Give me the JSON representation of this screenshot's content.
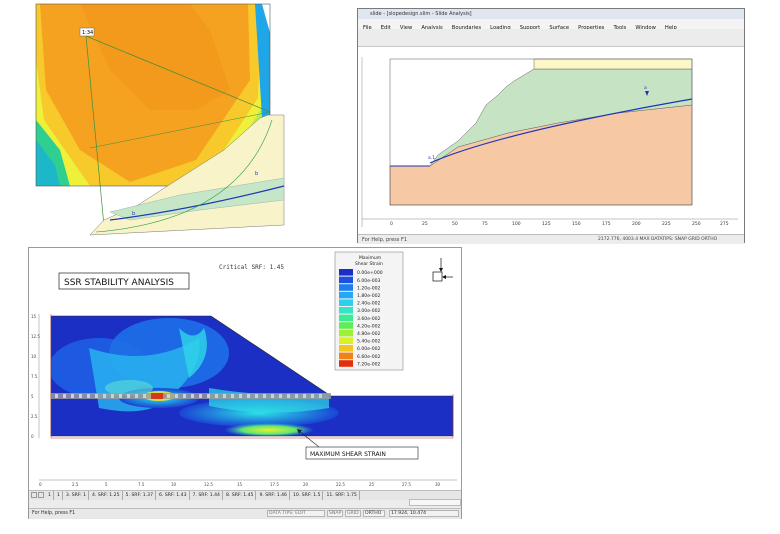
{
  "panel_top_left": {
    "label_box": "1:34",
    "label_b1": "b",
    "label_b2": "b"
  },
  "panel_top_right": {
    "window_title": "slide - [slopedesign.slim - Slide Analysis]",
    "menu": [
      "File",
      "Edit",
      "View",
      "Analysis",
      "Boundaries",
      "Loading",
      "Support",
      "Surface",
      "Properties",
      "Tools",
      "Window",
      "Help"
    ],
    "point_label_a": "a",
    "point_label_b": "a.1",
    "axis_ticks": [
      "0",
      "25",
      "50",
      "75",
      "100",
      "125",
      "150",
      "175",
      "200",
      "225",
      "250",
      "275"
    ],
    "status_left": "For Help, press F1",
    "status_right": "2172.776, 4003.4 MAX DATATIPS: SNAP GRID ORTHO"
  },
  "panel_bottom": {
    "critical_srf": "Critical SRF: 1.45",
    "analysis_title": "SSR STABILITY ANALYSIS",
    "legend_title_1": "Maximum",
    "legend_title_2": "Shear Strain",
    "legend_items": [
      {
        "label": "0.00e+000",
        "color": "#1b2fc8"
      },
      {
        "label": "6.00e-003",
        "color": "#1f4fe0"
      },
      {
        "label": "1.20e-002",
        "color": "#1e7ef0"
      },
      {
        "label": "1.80e-002",
        "color": "#23a9f2"
      },
      {
        "label": "2.40e-002",
        "color": "#2bd0ee"
      },
      {
        "label": "3.00e-002",
        "color": "#31e6c9"
      },
      {
        "label": "3.60e-002",
        "color": "#3ceb93"
      },
      {
        "label": "4.20e-002",
        "color": "#5fee55"
      },
      {
        "label": "4.80e-002",
        "color": "#9df035"
      },
      {
        "label": "5.40e-002",
        "color": "#dcef27"
      },
      {
        "label": "6.00e-002",
        "color": "#f5c51d"
      },
      {
        "label": "6.60e-002",
        "color": "#f18315"
      },
      {
        "label": "7.20e-002",
        "color": "#e2300f"
      }
    ],
    "annotation": "MAXIMUM SHEAR STRAIN",
    "x_ticks": [
      "0",
      "2.5",
      "5",
      "7.5",
      "10",
      "12.5",
      "15",
      "17.5",
      "20",
      "22.5",
      "25",
      "27.5",
      "30"
    ],
    "y_ticks": [
      "0",
      "2.5",
      "5",
      "7.5",
      "10",
      "12.5",
      "15"
    ],
    "stage_tabs": [
      "1",
      "1",
      "3. SRF: 1",
      "4. SRF: 1.25",
      "5. SRF: 1.37",
      "6. SRF: 1.43",
      "7. SRF: 1.44",
      "8. SRF: 1.45",
      "9. SRF: 1.46",
      "10. SRF: 1.5",
      "11. SRF: 1.75"
    ],
    "status_help": "For Help, press F1",
    "status_cells": [
      "DATA TIPS: EDIT",
      "SNAP",
      "GRID",
      "ORTHO"
    ],
    "coords": "17.924, 10.474"
  }
}
